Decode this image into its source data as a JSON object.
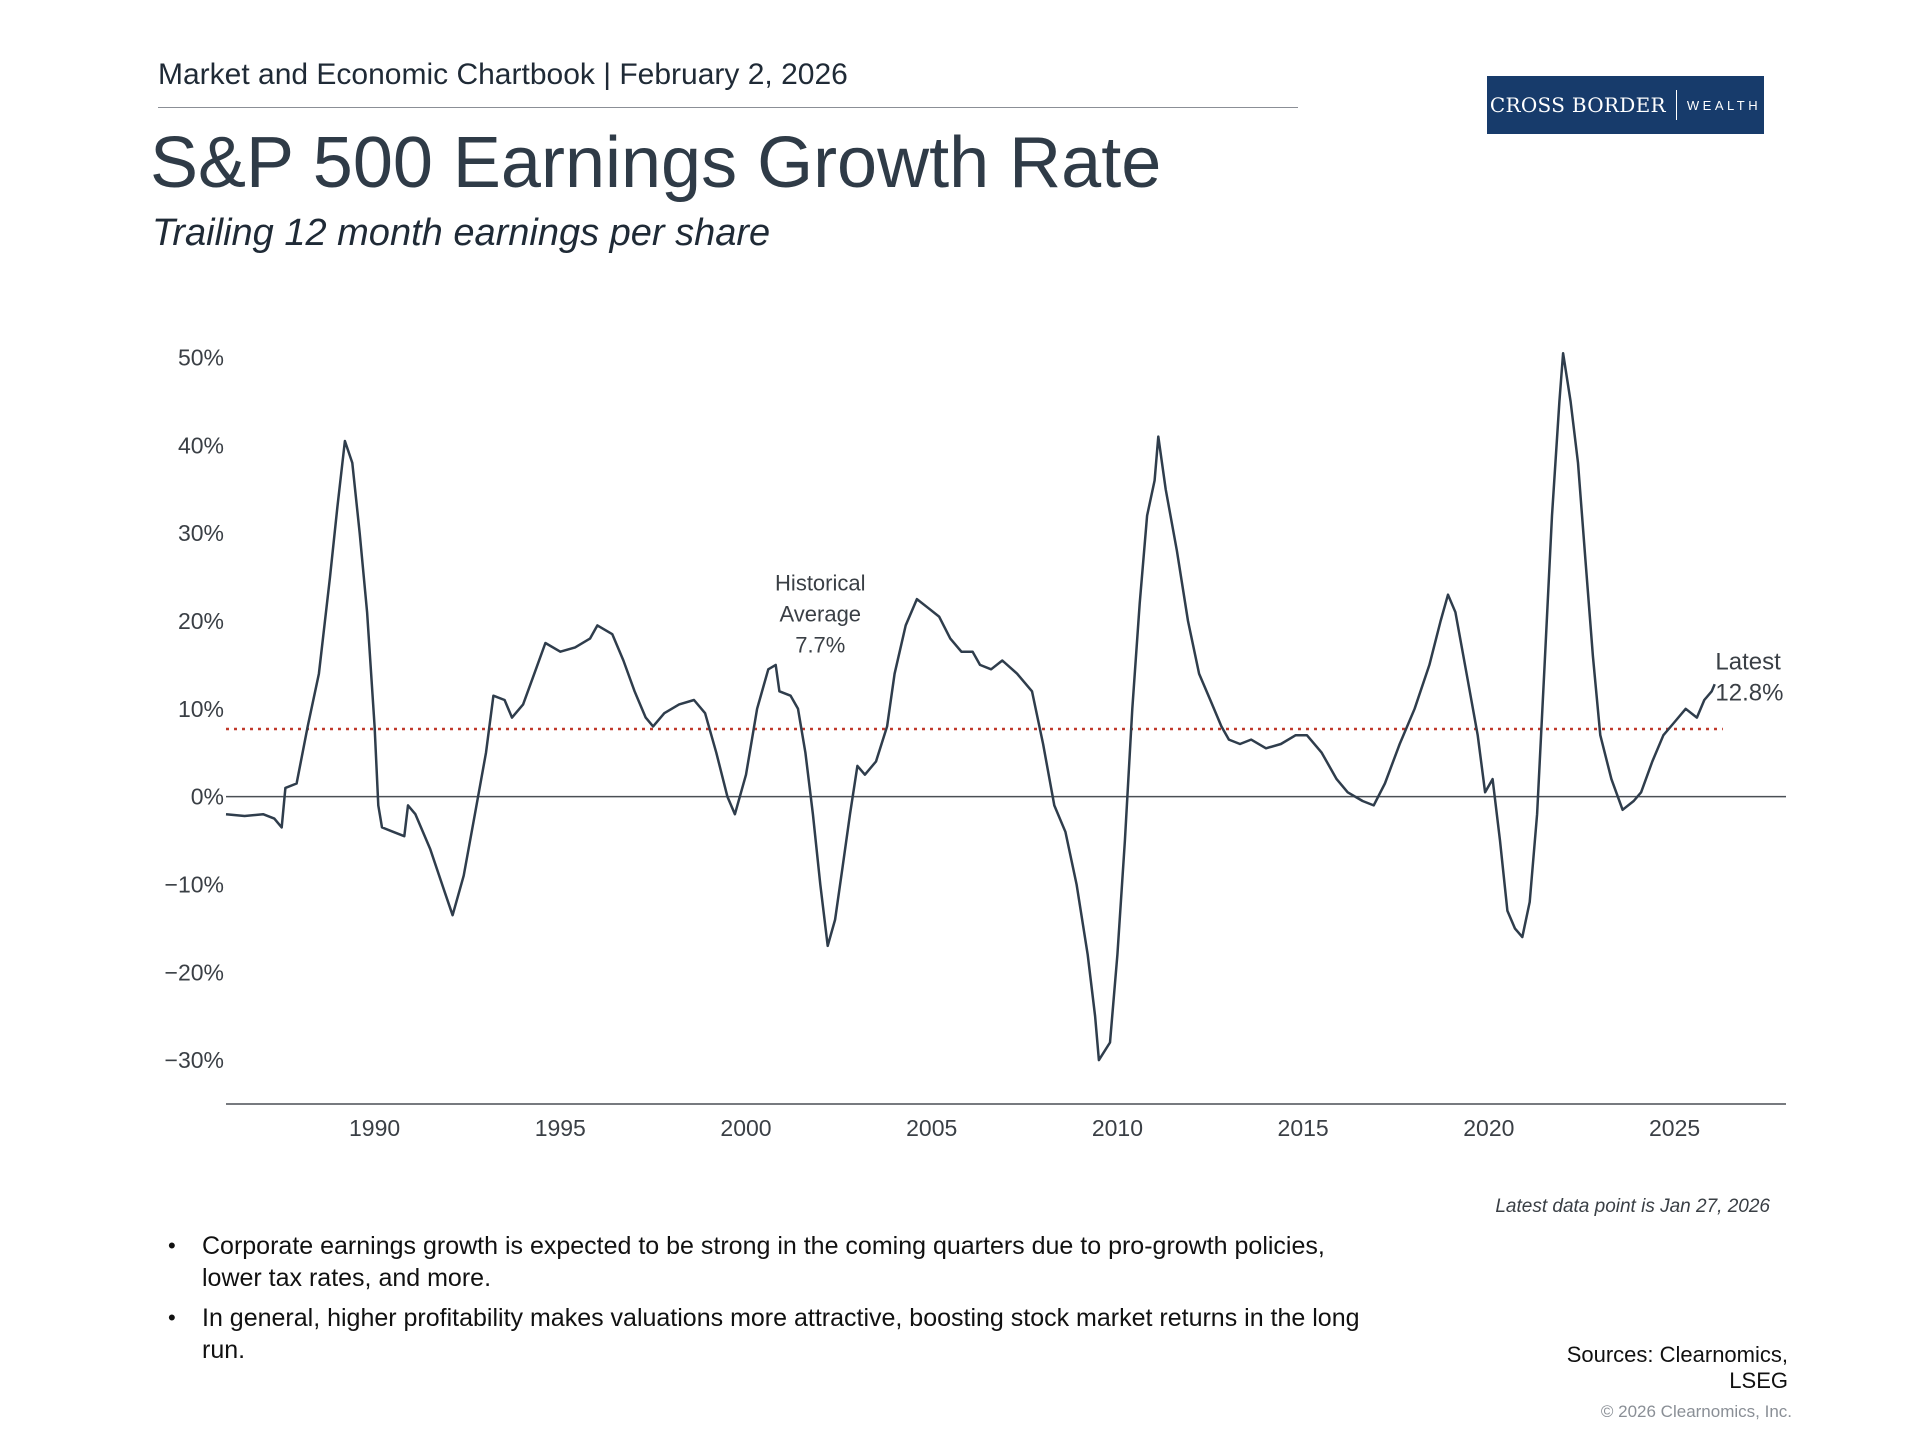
{
  "header": {
    "text": "Market and Economic Chartbook | February 2, 2026"
  },
  "logo": {
    "main": "CROSS BORDER",
    "sub": "WEALTH"
  },
  "title": "S&P 500 Earnings Growth Rate",
  "subtitle": "Trailing 12 month earnings per share",
  "chart_data": {
    "type": "line",
    "title": "S&P 500 Earnings Growth Rate",
    "subtitle": "Trailing 12 month earnings per share",
    "xlabel": "",
    "ylabel": "",
    "xlim": [
      1986,
      2028
    ],
    "ylim": [
      -35,
      52
    ],
    "y_ticks": [
      50,
      40,
      30,
      20,
      10,
      0,
      -10,
      -20,
      -30
    ],
    "y_tick_labels": [
      "50%",
      "40%",
      "30%",
      "20%",
      "10%",
      "0%",
      "−10%",
      "−20%",
      "−30%"
    ],
    "x_ticks": [
      1990,
      1995,
      2000,
      2005,
      2010,
      2015,
      2020,
      2025
    ],
    "x_tick_labels": [
      "1990",
      "1995",
      "2000",
      "2005",
      "2010",
      "2015",
      "2020",
      "2025"
    ],
    "reference_line": {
      "name": "Historical Average",
      "value": 7.7,
      "color": "#c0392b"
    },
    "series": [
      {
        "name": "S&P 500 trailing 12 month EPS growth",
        "color": "#2f3d4c",
        "points": [
          [
            1986.0,
            -2.0
          ],
          [
            1986.5,
            -2.2
          ],
          [
            1987.0,
            -2.0
          ],
          [
            1987.3,
            -2.5
          ],
          [
            1987.5,
            -3.5
          ],
          [
            1987.6,
            1.0
          ],
          [
            1987.9,
            1.5
          ],
          [
            1988.2,
            8.0
          ],
          [
            1988.5,
            14.0
          ],
          [
            1988.8,
            25.0
          ],
          [
            1989.0,
            33.0
          ],
          [
            1989.2,
            40.5
          ],
          [
            1989.4,
            38.0
          ],
          [
            1989.6,
            30.0
          ],
          [
            1989.8,
            21.0
          ],
          [
            1990.0,
            8.0
          ],
          [
            1990.1,
            -1.0
          ],
          [
            1990.2,
            -3.5
          ],
          [
            1990.5,
            -4.0
          ],
          [
            1990.8,
            -4.5
          ],
          [
            1990.9,
            -1.0
          ],
          [
            1991.1,
            -2.0
          ],
          [
            1991.5,
            -6.0
          ],
          [
            1991.9,
            -11.0
          ],
          [
            1992.1,
            -13.5
          ],
          [
            1992.4,
            -9.0
          ],
          [
            1992.7,
            -2.0
          ],
          [
            1993.0,
            5.0
          ],
          [
            1993.2,
            11.5
          ],
          [
            1993.5,
            11.0
          ],
          [
            1993.7,
            9.0
          ],
          [
            1994.0,
            10.5
          ],
          [
            1994.3,
            14.0
          ],
          [
            1994.6,
            17.5
          ],
          [
            1995.0,
            16.5
          ],
          [
            1995.4,
            17.0
          ],
          [
            1995.8,
            18.0
          ],
          [
            1996.0,
            19.5
          ],
          [
            1996.4,
            18.5
          ],
          [
            1996.7,
            15.5
          ],
          [
            1997.0,
            12.0
          ],
          [
            1997.3,
            9.0
          ],
          [
            1997.5,
            8.0
          ],
          [
            1997.8,
            9.5
          ],
          [
            1998.2,
            10.5
          ],
          [
            1998.6,
            11.0
          ],
          [
            1998.9,
            9.5
          ],
          [
            1999.2,
            5.0
          ],
          [
            1999.5,
            0.0
          ],
          [
            1999.7,
            -2.0
          ],
          [
            2000.0,
            2.5
          ],
          [
            2000.3,
            10.0
          ],
          [
            2000.6,
            14.5
          ],
          [
            2000.8,
            15.0
          ],
          [
            2000.9,
            12.0
          ],
          [
            2001.2,
            11.5
          ],
          [
            2001.4,
            10.0
          ],
          [
            2001.6,
            5.0
          ],
          [
            2001.8,
            -2.0
          ],
          [
            2002.0,
            -10.0
          ],
          [
            2002.2,
            -17.0
          ],
          [
            2002.4,
            -14.0
          ],
          [
            2002.6,
            -8.0
          ],
          [
            2002.8,
            -2.0
          ],
          [
            2003.0,
            3.5
          ],
          [
            2003.2,
            2.5
          ],
          [
            2003.5,
            4.0
          ],
          [
            2003.8,
            8.0
          ],
          [
            2004.0,
            14.0
          ],
          [
            2004.3,
            19.5
          ],
          [
            2004.6,
            22.5
          ],
          [
            2004.9,
            21.5
          ],
          [
            2005.2,
            20.5
          ],
          [
            2005.5,
            18.0
          ],
          [
            2005.8,
            16.5
          ],
          [
            2006.1,
            16.5
          ],
          [
            2006.3,
            15.0
          ],
          [
            2006.6,
            14.5
          ],
          [
            2006.9,
            15.5
          ],
          [
            2007.3,
            14.0
          ],
          [
            2007.7,
            12.0
          ],
          [
            2008.0,
            6.0
          ],
          [
            2008.3,
            -1.0
          ],
          [
            2008.6,
            -4.0
          ],
          [
            2008.9,
            -10.0
          ],
          [
            2009.2,
            -18.0
          ],
          [
            2009.4,
            -25.0
          ],
          [
            2009.5,
            -30.0
          ],
          [
            2009.8,
            -28.0
          ],
          [
            2010.0,
            -18.0
          ],
          [
            2010.2,
            -5.0
          ],
          [
            2010.4,
            10.0
          ],
          [
            2010.6,
            22.0
          ],
          [
            2010.8,
            32.0
          ],
          [
            2011.0,
            36.0
          ],
          [
            2011.1,
            41.0
          ],
          [
            2011.3,
            35.0
          ],
          [
            2011.6,
            28.0
          ],
          [
            2011.9,
            20.0
          ],
          [
            2012.2,
            14.0
          ],
          [
            2012.5,
            11.0
          ],
          [
            2012.8,
            8.0
          ],
          [
            2013.0,
            6.5
          ],
          [
            2013.3,
            6.0
          ],
          [
            2013.6,
            6.5
          ],
          [
            2014.0,
            5.5
          ],
          [
            2014.4,
            6.0
          ],
          [
            2014.8,
            7.0
          ],
          [
            2015.1,
            7.0
          ],
          [
            2015.5,
            5.0
          ],
          [
            2015.9,
            2.0
          ],
          [
            2016.2,
            0.5
          ],
          [
            2016.6,
            -0.5
          ],
          [
            2016.9,
            -1.0
          ],
          [
            2017.2,
            1.5
          ],
          [
            2017.6,
            6.0
          ],
          [
            2018.0,
            10.0
          ],
          [
            2018.4,
            15.0
          ],
          [
            2018.7,
            20.0
          ],
          [
            2018.9,
            23.0
          ],
          [
            2019.1,
            21.0
          ],
          [
            2019.4,
            14.0
          ],
          [
            2019.7,
            7.0
          ],
          [
            2019.9,
            0.5
          ],
          [
            2020.1,
            2.0
          ],
          [
            2020.3,
            -5.0
          ],
          [
            2020.5,
            -13.0
          ],
          [
            2020.7,
            -15.0
          ],
          [
            2020.9,
            -16.0
          ],
          [
            2021.1,
            -12.0
          ],
          [
            2021.3,
            -2.0
          ],
          [
            2021.5,
            15.0
          ],
          [
            2021.7,
            32.0
          ],
          [
            2021.9,
            45.0
          ],
          [
            2022.0,
            50.5
          ],
          [
            2022.2,
            45.0
          ],
          [
            2022.4,
            38.0
          ],
          [
            2022.6,
            27.0
          ],
          [
            2022.8,
            16.0
          ],
          [
            2023.0,
            7.0
          ],
          [
            2023.3,
            2.0
          ],
          [
            2023.6,
            -1.5
          ],
          [
            2023.9,
            -0.5
          ],
          [
            2024.1,
            0.5
          ],
          [
            2024.4,
            4.0
          ],
          [
            2024.7,
            7.0
          ],
          [
            2025.0,
            8.5
          ],
          [
            2025.3,
            10.0
          ],
          [
            2025.6,
            9.0
          ],
          [
            2025.8,
            11.0
          ],
          [
            2026.0,
            12.0
          ],
          [
            2026.08,
            12.8
          ]
        ]
      }
    ],
    "annotations": [
      {
        "text": [
          "Historical",
          "Average",
          "7.7%"
        ],
        "x": 2002.0,
        "y": 23.5
      },
      {
        "text": [
          "Latest",
          "12.8%"
        ],
        "x": 2026.1,
        "y": 14.5
      }
    ],
    "grid": false,
    "legend": "none"
  },
  "notes": {
    "latest": "Latest data point is Jan 27, 2026"
  },
  "bullets": [
    "Corporate earnings growth is expected to be strong in the coming quarters due to pro-growth policies, lower tax rates, and more.",
    "In general, higher profitability makes valuations more attractive, boosting stock market returns in the long run."
  ],
  "bullet_symbol": "•",
  "sources": {
    "line1": "Sources: Clearnomics,",
    "line2": "LSEG"
  },
  "copyright": "© 2026 Clearnomics, Inc."
}
